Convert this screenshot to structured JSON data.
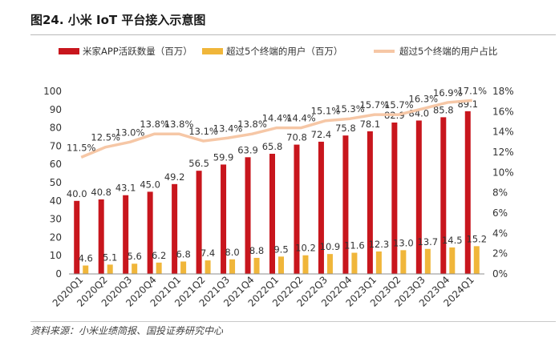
{
  "header": {
    "title": "图24. 小米 IoT 平台接入示意图"
  },
  "footer": {
    "source": "资料来源：小米业绩简报、国投证券研究中心"
  },
  "colors": {
    "active": "#c8161d",
    "multi": "#f0b63a",
    "ratio": "#f6c7a6"
  },
  "chart_data": {
    "type": "bar",
    "categories": [
      "2020Q1",
      "2020Q2",
      "2020Q3",
      "2020Q4",
      "2021Q1",
      "2021Q2",
      "2021Q3",
      "2021Q4",
      "2022Q1",
      "2022Q2",
      "2022Q3",
      "2022Q4",
      "2023Q1",
      "2023Q2",
      "2023Q3",
      "2023Q4",
      "2024Q1"
    ],
    "series": [
      {
        "name": "米家APP活跃数量（百万）",
        "type": "bar",
        "axis": "left",
        "values": [
          40.0,
          40.8,
          43.1,
          45.0,
          49.2,
          56.5,
          59.9,
          63.9,
          65.8,
          70.8,
          72.4,
          75.8,
          78.1,
          82.9,
          84.0,
          85.8,
          89.1
        ],
        "labels": [
          "40.0",
          "40.8",
          "43.1",
          "45.0",
          "49.2",
          "56.5",
          "59.9",
          "63.9",
          "65.8",
          "70.8",
          "72.4",
          "75.8",
          "78.1",
          "82.9",
          "84.0",
          "85.8",
          "89.1"
        ]
      },
      {
        "name": "超过5个终端的用户（百万）",
        "type": "bar",
        "axis": "left",
        "values": [
          4.6,
          5.1,
          5.6,
          6.2,
          6.8,
          7.4,
          8.0,
          8.8,
          9.5,
          10.2,
          10.9,
          11.6,
          12.3,
          13.0,
          13.7,
          14.5,
          15.2
        ],
        "labels": [
          "4.6",
          "5.1",
          "5.6",
          "6.2",
          "6.8",
          "7.4",
          "8.0",
          "8.8",
          "9.5",
          "10.2",
          "10.9",
          "11.6",
          "12.3",
          "13.0",
          "13.7",
          "14.5",
          "15.2"
        ]
      },
      {
        "name": "超过5个终端的用户占比",
        "type": "line",
        "axis": "right",
        "values": [
          11.5,
          12.5,
          13.0,
          13.8,
          13.8,
          13.1,
          13.4,
          13.8,
          14.4,
          14.4,
          15.1,
          15.3,
          15.7,
          15.7,
          16.3,
          16.9,
          17.1
        ],
        "labels": [
          "11.5%",
          "12.5%",
          "13.0%",
          "13.8%",
          "13.8%",
          "13.1%",
          "13.4%",
          "13.8%",
          "14.4%",
          "14.4%",
          "15.1%",
          "15.3%",
          "15.7%",
          "15.7%",
          "16.3%",
          "16.9%",
          "17.1%"
        ]
      }
    ],
    "y_left": {
      "min": 0,
      "max": 100,
      "step": 10,
      "ticks": [
        "0",
        "10",
        "20",
        "30",
        "40",
        "50",
        "60",
        "70",
        "80",
        "90",
        "100"
      ]
    },
    "y_right": {
      "min": 0,
      "max": 18,
      "step": 2,
      "ticks": [
        "0%",
        "2%",
        "4%",
        "6%",
        "8%",
        "10%",
        "12%",
        "14%",
        "16%",
        "18%"
      ]
    },
    "legend_position": "top",
    "grid": false
  }
}
